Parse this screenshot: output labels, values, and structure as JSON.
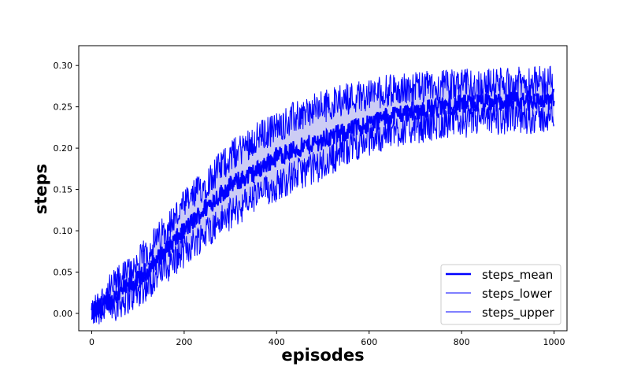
{
  "chart_data": {
    "type": "line",
    "xlabel": "episodes",
    "ylabel": "steps",
    "xlim": [
      -28,
      1028
    ],
    "ylim": [
      -0.021,
      0.324
    ],
    "x_ticks": [
      0,
      200,
      400,
      600,
      800,
      1000
    ],
    "y_ticks": [
      0.0,
      0.05,
      0.1,
      0.15,
      0.2,
      0.25,
      0.3
    ],
    "y_tick_labels": [
      "0.00",
      "0.05",
      "0.10",
      "0.15",
      "0.20",
      "0.25",
      "0.30"
    ],
    "x_tick_labels": [
      "0",
      "200",
      "400",
      "600",
      "800",
      "1000"
    ],
    "grid": false,
    "legend_position": "lower-right",
    "line_color": "#0000ff",
    "band_color": "#ccccf4",
    "x_range": [
      0,
      1000
    ],
    "noise": {
      "mean": 0.012,
      "band": 0.02
    },
    "series": [
      {
        "name": "steps_mean",
        "role": "mean",
        "values": [
          0.0,
          0.02,
          0.04,
          0.07,
          0.1,
          0.13,
          0.155,
          0.17,
          0.19,
          0.2,
          0.21,
          0.22,
          0.23,
          0.24,
          0.245,
          0.25,
          0.253,
          0.255,
          0.256,
          0.257,
          0.258
        ]
      },
      {
        "name": "steps_lower",
        "role": "lower",
        "values": [
          0.0,
          0.01,
          0.025,
          0.05,
          0.075,
          0.1,
          0.12,
          0.14,
          0.155,
          0.17,
          0.18,
          0.2,
          0.21,
          0.22,
          0.225,
          0.23,
          0.232,
          0.235,
          0.236,
          0.237,
          0.238
        ]
      },
      {
        "name": "steps_upper",
        "role": "upper",
        "values": [
          0.0,
          0.035,
          0.06,
          0.095,
          0.13,
          0.16,
          0.19,
          0.21,
          0.225,
          0.24,
          0.25,
          0.26,
          0.265,
          0.27,
          0.272,
          0.275,
          0.276,
          0.277,
          0.278,
          0.279,
          0.28
        ]
      }
    ],
    "legend": [
      "steps_mean",
      "steps_lower",
      "steps_upper"
    ]
  }
}
